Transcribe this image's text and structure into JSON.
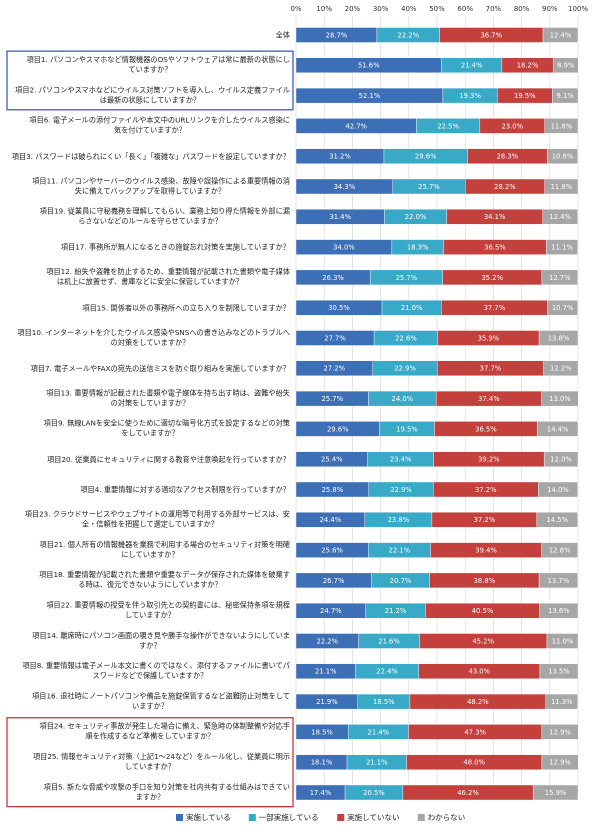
{
  "chart_data": {
    "type": "bar",
    "orientation": "horizontal",
    "stacked": true,
    "x_ticks": [
      "0%",
      "10%",
      "20%",
      "30%",
      "40%",
      "50%",
      "60%",
      "70%",
      "80%",
      "90%",
      "100%"
    ],
    "xlim": [
      0,
      100
    ],
    "grid": true,
    "legend_position": "bottom",
    "categories": [
      [
        "全体"
      ],
      [
        "項目1. パソコンやスマホなど情報機器のOSやソフトウェアは常に最新の状態にし",
        "ていますか？"
      ],
      [
        "項目2. パソコンやスマホなどにウイルス対策ソフトを導入し、ウイルス定義ファイル",
        "は最新の状態にしていますか？"
      ],
      [
        "項目6. 電子メールの添付ファイルや本文中のURLリンクを介したウイルス感染に",
        "気を付けていますか？"
      ],
      [
        "項目3. パスワードは破られにくい「長く」「複雑な」パスワードを設定していますか？"
      ],
      [
        "項目11. パソコンやサーバーのウイルス感染、故障や誤操作による重要情報の消",
        "失に備えてバックアップを取得していますか？"
      ],
      [
        "項目19. 従業員に守秘義務を理解してもらい、業務上知り得た情報を外部に漏",
        "らさないなどのルールを守らせていますか？"
      ],
      [
        "項目17. 事務所が無人になるときの施錠忘れ対策を実施していますか？"
      ],
      [
        "項目12. 紛失や盗難を防止するため、重要情報が記載された書類や電子媒体",
        "は机上に放置せず、書庫などに安全に保管していますか？"
      ],
      [
        "項目15. 関係者以外の事務所への立ち入りを制限していますか？"
      ],
      [
        "項目10. インターネットを介したウイルス感染やSNSへの書き込みなどのトラブルへ",
        "の対策をしていますか？"
      ],
      [
        "項目7. 電子メールやFAXの宛先の送信ミスを防ぐ取り組みを実施していますか？"
      ],
      [
        "項目13. 重要情報が記載された書類や電子媒体を持ち出す時は、盗難や紛失",
        "の対策をしていますか？"
      ],
      [
        "項目9. 無線LANを安全に使うために適切な暗号化方式を設定するなどの対策",
        "をしていますか？"
      ],
      [
        "項目20. 従業員にセキュリティに関する教育や注意喚起を行っていますか？"
      ],
      [
        "項目4. 重要情報に対する適切なアクセス制限を行っていますか？"
      ],
      [
        "項目23. クラウドサービスやウェブサイトの運用等で利用する外部サービスは、安",
        "全・信頼性を把握して選定していますか？"
      ],
      [
        "項目21. 個人所有の情報機器を業務で利用する場合のセキュリティ対策を明確",
        "にしていますか？"
      ],
      [
        "項目18. 重要情報が記載された書類や重要なデータが保存された媒体を破棄す",
        "る時は、復元できないようにしていますか？"
      ],
      [
        "項目22. 重要情報の授受を伴う取引先との契約書には、秘密保持条項を規程",
        "していますか？"
      ],
      [
        "項目14. 離席時にパソコン画面の覗き見や勝手な操作ができないようにしていま",
        "すか？"
      ],
      [
        "項目8. 重要情報は電子メール本文に書くのではなく、添付するファイルに書いてパ",
        "スワードなどで保護していますか？"
      ],
      [
        "項目16. 退社時にノートパソコンや備品を施錠保管するなど盗難防止対策をして",
        "いますか？"
      ],
      [
        "項目24. セキュリティ事故が発生した場合に備え、緊急時の体制整備や対応手",
        "順を作成するなど準備をしていますか？"
      ],
      [
        "項目25. 情報セキュリティ対策（上記1～24など）をルール化し、従業員に明示",
        "していますか？"
      ],
      [
        "項目5. 新たな脅威や攻撃の手口を知り対策を社内共有する仕組みはできてい",
        "ますか？"
      ]
    ],
    "series": [
      {
        "name": "実施している",
        "color": "#3d6fb6",
        "values": [
          28.7,
          51.6,
          52.1,
          42.7,
          31.2,
          34.3,
          31.4,
          34.0,
          26.3,
          30.5,
          27.7,
          27.2,
          25.7,
          29.6,
          25.4,
          25.8,
          24.4,
          25.6,
          26.7,
          24.7,
          22.2,
          21.1,
          21.9,
          18.5,
          18.1,
          17.4
        ]
      },
      {
        "name": "一部実施している",
        "color": "#39a9c8",
        "values": [
          22.2,
          21.4,
          19.3,
          22.5,
          29.6,
          25.7,
          22.0,
          18.3,
          25.7,
          21.0,
          22.6,
          22.9,
          24.0,
          19.5,
          23.4,
          22.9,
          23.8,
          22.1,
          20.7,
          21.2,
          21.6,
          22.4,
          18.5,
          21.4,
          21.1,
          20.5
        ]
      },
      {
        "name": "実施していない",
        "color": "#c4403c",
        "values": [
          36.7,
          18.2,
          19.5,
          23.0,
          28.3,
          28.2,
          34.1,
          36.5,
          35.2,
          37.7,
          35.9,
          37.7,
          37.4,
          36.5,
          39.2,
          37.2,
          37.2,
          39.4,
          38.8,
          40.5,
          45.2,
          43.0,
          48.2,
          47.3,
          48.0,
          46.2
        ]
      },
      {
        "name": "わからない",
        "color": "#a6a6a6",
        "values": [
          12.4,
          8.9,
          9.1,
          11.8,
          10.8,
          11.8,
          12.4,
          11.1,
          12.7,
          10.7,
          13.8,
          12.2,
          13.0,
          14.4,
          12.0,
          14.0,
          14.5,
          12.8,
          13.7,
          13.6,
          11.0,
          13.5,
          11.3,
          12.9,
          12.9,
          15.9
        ]
      }
    ],
    "highlight_boxes": [
      {
        "rows": [
          1,
          2
        ],
        "color": "#3b5cc6"
      },
      {
        "rows": [
          23,
          24,
          25
        ],
        "color": "#c8383c"
      }
    ]
  }
}
